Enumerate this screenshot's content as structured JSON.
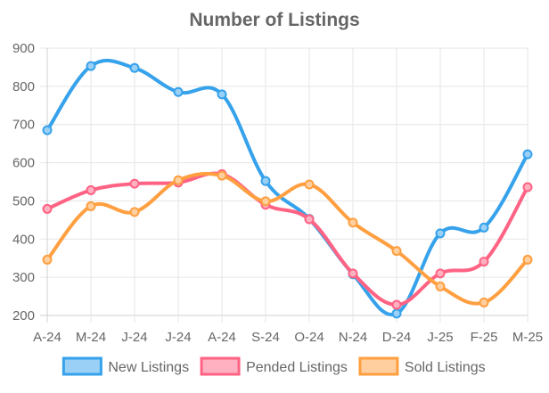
{
  "chart_data": {
    "type": "line",
    "title": "Number of Listings",
    "xlabel": "",
    "ylabel": "",
    "categories": [
      "A-24",
      "M-24",
      "J-24",
      "J-24",
      "A-24",
      "S-24",
      "O-24",
      "N-24",
      "D-24",
      "J-25",
      "F-25",
      "M-25"
    ],
    "ylim": [
      200,
      900
    ],
    "yticks": [
      "200",
      "300",
      "400",
      "500",
      "600",
      "700",
      "800",
      "900"
    ],
    "grid": true,
    "legend_position": "bottom",
    "series": [
      {
        "name": "New Listings",
        "color": "#36a2eb",
        "fill": "#9ad0f5",
        "values": [
          685,
          853,
          848,
          785,
          779,
          552,
          453,
          308,
          205,
          415,
          430,
          622
        ]
      },
      {
        "name": "Pended Listings",
        "color": "#ff6384",
        "fill": "#ffb1c1",
        "values": [
          479,
          528,
          545,
          548,
          570,
          490,
          452,
          310,
          228,
          310,
          341,
          536
        ]
      },
      {
        "name": "Sold Listings",
        "color": "#ff9f40",
        "fill": "#ffcf9f",
        "values": [
          346,
          486,
          471,
          554,
          566,
          499,
          543,
          443,
          369,
          276,
          234,
          346
        ]
      }
    ]
  }
}
